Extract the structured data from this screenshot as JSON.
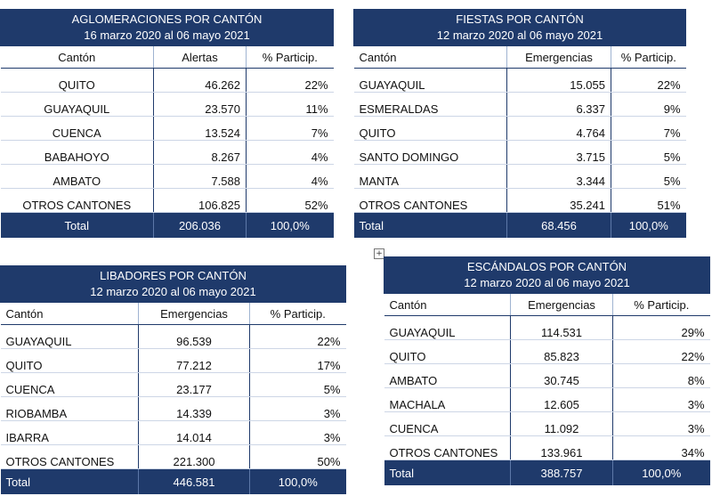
{
  "tables": {
    "aglomeraciones": {
      "title": "AGLOMERACIONES POR CANTÓN",
      "period": "16 marzo 2020 al 06 mayo 2021",
      "headers": [
        "Cantón",
        "Alertas",
        "% Particip."
      ],
      "rows": [
        [
          "QUITO",
          "46.262",
          "22%"
        ],
        [
          "GUAYAQUIL",
          "23.570",
          "11%"
        ],
        [
          "CUENCA",
          "13.524",
          "7%"
        ],
        [
          "BABAHOYO",
          "8.267",
          "4%"
        ],
        [
          "AMBATO",
          "7.588",
          "4%"
        ],
        [
          "OTROS CANTONES",
          "106.825",
          "52%"
        ]
      ],
      "total": [
        "Total",
        "206.036",
        "100,0%"
      ]
    },
    "fiestas": {
      "title": "FIESTAS POR CANTÓN",
      "period": "12 marzo 2020 al 06 mayo 2021",
      "headers": [
        "Cantón",
        "Emergencias",
        "% Particip."
      ],
      "rows": [
        [
          "GUAYAQUIL",
          "15.055",
          "22%"
        ],
        [
          "ESMERALDAS",
          "6.337",
          "9%"
        ],
        [
          "QUITO",
          "4.764",
          "7%"
        ],
        [
          "SANTO DOMINGO",
          "3.715",
          "5%"
        ],
        [
          "MANTA",
          "3.344",
          "5%"
        ],
        [
          "OTROS CANTONES",
          "35.241",
          "51%"
        ]
      ],
      "total": [
        "Total",
        "68.456",
        "100,0%"
      ]
    },
    "libadores": {
      "title": "LIBADORES POR CANTÓN",
      "period": "12 marzo 2020 al 06 mayo 2021",
      "headers": [
        "Cantón",
        "Emergencias",
        "% Particip."
      ],
      "rows": [
        [
          "GUAYAQUIL",
          "96.539",
          "22%"
        ],
        [
          "QUITO",
          "77.212",
          "17%"
        ],
        [
          "CUENCA",
          "23.177",
          "5%"
        ],
        [
          "RIOBAMBA",
          "14.339",
          "3%"
        ],
        [
          "IBARRA",
          "14.014",
          "3%"
        ],
        [
          "OTROS CANTONES",
          "221.300",
          "50%"
        ]
      ],
      "total": [
        "Total",
        "446.581",
        "100,0%"
      ]
    },
    "escandalos": {
      "title": "ESCÁNDALOS POR CANTÓN",
      "period": "12 marzo 2020 al 06 mayo 2021",
      "headers": [
        "Cantón",
        "Emergencias",
        "% Particip."
      ],
      "rows": [
        [
          "GUAYAQUIL",
          "114.531",
          "29%"
        ],
        [
          "QUITO",
          "85.823",
          "22%"
        ],
        [
          "AMBATO",
          "30.745",
          "8%"
        ],
        [
          "MACHALA",
          "12.605",
          "3%"
        ],
        [
          "CUENCA",
          "11.092",
          "3%"
        ],
        [
          "OTROS CANTONES",
          "133.961",
          "34%"
        ]
      ],
      "total": [
        "Total",
        "388.757",
        "100,0%"
      ]
    }
  },
  "colors": {
    "header_blue": "#1f3a6b",
    "white": "#ffffff"
  },
  "icons": {
    "table_handle": "move-handle-icon"
  }
}
